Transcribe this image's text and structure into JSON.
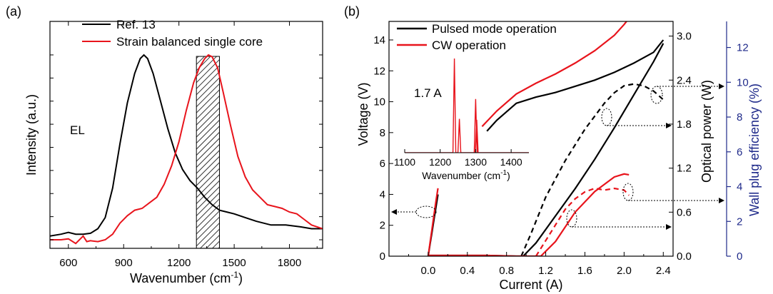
{
  "chart_data": [
    {
      "panel": "(a)",
      "type": "line",
      "xlabel": "Wavenumber (cm",
      "xlabel_sup": "-1",
      "xlabel_close": ")",
      "ylabel": "Intensity (a.u.)",
      "xlim": [
        500,
        1980
      ],
      "ylim": [
        0,
        1.05
      ],
      "xticks": [
        "600",
        "900",
        "1200",
        "1500",
        "1800"
      ],
      "annotation": "EL",
      "shaded_band": [
        1295,
        1420
      ],
      "colors": {
        "Ref. 13": "#000000",
        "Strain balanced single core": "#e8141c"
      },
      "series": [
        {
          "name": "Ref. 13",
          "x": [
            500,
            560,
            600,
            640,
            680,
            720,
            760,
            800,
            840,
            880,
            920,
            960,
            990,
            1010,
            1030,
            1060,
            1100,
            1140,
            1180,
            1220,
            1260,
            1300,
            1340,
            1380,
            1420,
            1460,
            1500,
            1560,
            1620,
            1700,
            1780,
            1860,
            1920,
            1980
          ],
          "y": [
            0.02,
            0.03,
            0.04,
            0.03,
            0.03,
            0.035,
            0.06,
            0.12,
            0.28,
            0.52,
            0.74,
            0.9,
            0.98,
            1.0,
            0.98,
            0.9,
            0.75,
            0.6,
            0.47,
            0.38,
            0.32,
            0.28,
            0.23,
            0.19,
            0.16,
            0.15,
            0.14,
            0.12,
            0.1,
            0.08,
            0.08,
            0.07,
            0.06,
            0.06
          ]
        },
        {
          "name": "Strain balanced single core",
          "x": [
            500,
            560,
            600,
            640,
            680,
            700,
            720,
            760,
            800,
            840,
            880,
            920,
            960,
            1000,
            1040,
            1080,
            1120,
            1160,
            1200,
            1240,
            1280,
            1310,
            1340,
            1360,
            1380,
            1410,
            1440,
            1480,
            1520,
            1560,
            1600,
            1640,
            1680,
            1720,
            1760,
            1800,
            1840,
            1880,
            1920,
            1980
          ],
          "y": [
            0.0,
            0.0,
            0.005,
            -0.02,
            0.02,
            -0.01,
            -0.005,
            -0.01,
            0.0,
            0.03,
            0.09,
            0.13,
            0.16,
            0.17,
            0.2,
            0.23,
            0.3,
            0.4,
            0.53,
            0.7,
            0.85,
            0.93,
            0.98,
            1.0,
            0.99,
            0.93,
            0.8,
            0.62,
            0.45,
            0.34,
            0.27,
            0.23,
            0.19,
            0.18,
            0.17,
            0.15,
            0.14,
            0.11,
            0.08,
            0.06
          ]
        }
      ]
    },
    {
      "panel": "(b)",
      "type": "line",
      "xlabel": "Current (A)",
      "ylabel_left": "Voltage (V)",
      "ylabel_right1": "Optical power (W)",
      "ylabel_right2": "Wall plug efficiency (%)",
      "xlim": [
        -0.4,
        2.5
      ],
      "ylim_voltage": [
        0,
        15.2
      ],
      "ylim_power": [
        0,
        3.2
      ],
      "ylim_wpe": [
        0,
        13.5
      ],
      "xticks": [
        "0.0",
        "0.4",
        "0.8",
        "1.2",
        "1.6",
        "2.0",
        "2.4"
      ],
      "yticks_voltage": [
        "0",
        "2",
        "4",
        "6",
        "8",
        "10",
        "12",
        "14"
      ],
      "yticks_power": [
        "0.0",
        "0.6",
        "1.2",
        "1.8",
        "2.4",
        "3.0"
      ],
      "yticks_wpe": [
        "0",
        "2",
        "4",
        "6",
        "8",
        "10",
        "12"
      ],
      "legend": [
        "Pulsed mode operation",
        "CW operation"
      ],
      "colors": {
        "pulsed": "#000000",
        "cw": "#e8141c",
        "wpe_axis": "#1f2a8a"
      },
      "series": [
        {
          "name": "Pulsed mode operation",
          "quantity": "voltage",
          "x": [
            0.0,
            0.02,
            0.04,
            0.06,
            0.08,
            0.1
          ],
          "y": [
            0.0,
            0.8,
            1.6,
            2.4,
            3.2,
            4.0
          ]
        },
        {
          "name": "Pulsed mode operation",
          "quantity": "voltage",
          "x": [
            0.6,
            0.7,
            0.9,
            1.1,
            1.3,
            1.5,
            1.7,
            1.9,
            2.1,
            2.3,
            2.4
          ],
          "y": [
            8.1,
            8.8,
            9.9,
            10.3,
            10.6,
            11.0,
            11.4,
            11.9,
            12.5,
            13.2,
            14.0
          ]
        },
        {
          "name": "CW operation",
          "quantity": "voltage",
          "x": [
            0.0,
            0.02,
            0.04,
            0.06,
            0.08,
            0.1
          ],
          "y": [
            0.0,
            0.9,
            1.8,
            2.7,
            3.6,
            4.4
          ]
        },
        {
          "name": "CW operation",
          "quantity": "voltage",
          "x": [
            0.55,
            0.7,
            0.9,
            1.1,
            1.3,
            1.5,
            1.7,
            1.9,
            2.0,
            2.05
          ],
          "y": [
            8.4,
            9.4,
            10.5,
            11.2,
            11.8,
            12.5,
            13.3,
            14.3,
            15.0,
            15.4
          ]
        },
        {
          "name": "Pulsed mode operation",
          "quantity": "optical power",
          "x": [
            0.0,
            0.3,
            0.6,
            0.9,
            0.97,
            1.1,
            1.3,
            1.5,
            1.7,
            1.9,
            2.1,
            2.3,
            2.4
          ],
          "y": [
            0.01,
            0.01,
            0.01,
            0.0,
            0.0,
            0.18,
            0.55,
            0.92,
            1.32,
            1.75,
            2.2,
            2.65,
            2.9
          ]
        },
        {
          "name": "Pulsed mode operation",
          "quantity": "wall plug efficiency",
          "x": [
            0.95,
            1.05,
            1.2,
            1.4,
            1.6,
            1.8,
            1.9,
            2.0,
            2.1,
            2.2,
            2.3,
            2.4
          ],
          "y": [
            0.0,
            1.3,
            3.4,
            5.5,
            7.3,
            8.8,
            9.4,
            9.8,
            9.9,
            9.8,
            9.5,
            9.0
          ]
        },
        {
          "name": "CW operation",
          "quantity": "optical power",
          "x": [
            0.0,
            0.6,
            0.9,
            1.0,
            1.15,
            1.3,
            1.5,
            1.7,
            1.8,
            1.9,
            2.0,
            2.05
          ],
          "y": [
            0.01,
            0.01,
            0.0,
            0.0,
            0.0,
            0.2,
            0.6,
            0.88,
            0.98,
            1.08,
            1.12,
            1.11
          ]
        },
        {
          "name": "CW operation",
          "quantity": "wall plug efficiency",
          "x": [
            1.1,
            1.2,
            1.3,
            1.4,
            1.5,
            1.6,
            1.7,
            1.8,
            1.9,
            2.0,
            2.05
          ],
          "y": [
            0.0,
            0.9,
            1.8,
            2.7,
            3.3,
            3.7,
            3.9,
            3.8,
            3.9,
            3.8,
            3.5
          ]
        }
      ],
      "inset": {
        "annotation": "1.7 A",
        "xlabel": "Wavenumber (cm",
        "xlabel_sup": "-1",
        "xlabel_close": ")",
        "xlim": [
          1100,
          1450
        ],
        "xticks": [
          "1100",
          "1200",
          "1300",
          "1400"
        ],
        "peaks": [
          {
            "x": 1240,
            "height": 1.0
          },
          {
            "x": 1254,
            "height": 0.36
          },
          {
            "x": 1300,
            "height": 0.57
          },
          {
            "x": 1303,
            "height": 0.35
          }
        ]
      }
    }
  ],
  "labels": {
    "panel_a": "(a)",
    "panel_b": "(b)",
    "legend_a_1": "Ref. 13",
    "legend_a_2": "Strain balanced single core",
    "el": "EL",
    "legend_b_1": "Pulsed mode operation",
    "legend_b_2": "CW operation",
    "inset_current": "1.7 A"
  }
}
